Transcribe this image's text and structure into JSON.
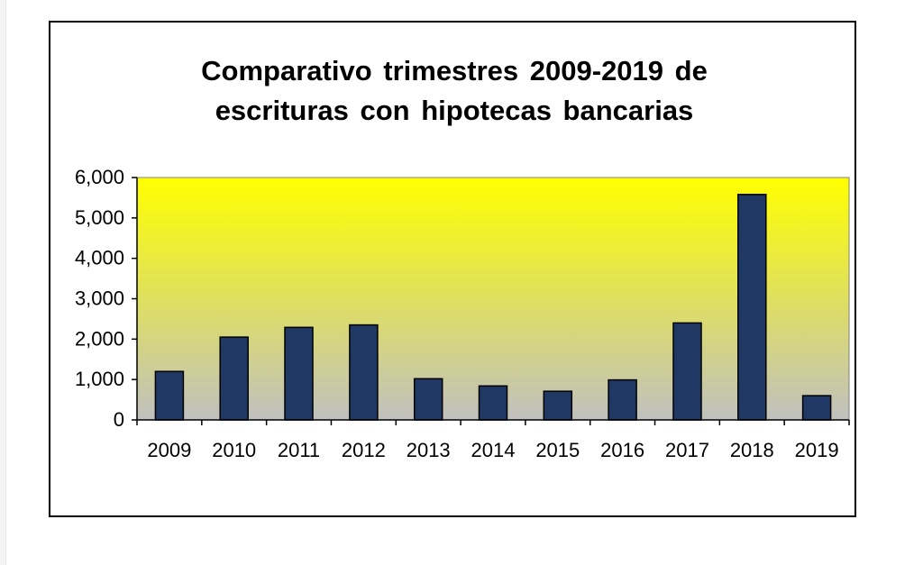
{
  "chart_data": {
    "type": "bar",
    "title_lines": [
      "Comparativo trimestres 2009-2019 de",
      "escrituras con hipotecas bancarias"
    ],
    "categories": [
      "2009",
      "2010",
      "2011",
      "2012",
      "2013",
      "2014",
      "2015",
      "2016",
      "2017",
      "2018",
      "2019"
    ],
    "values": [
      1200,
      2050,
      2290,
      2350,
      1020,
      840,
      710,
      990,
      2400,
      5580,
      600
    ],
    "y_ticks": [
      "0",
      "1,000",
      "2,000",
      "3,000",
      "4,000",
      "5,000",
      "6,000"
    ],
    "ylim": [
      0,
      6000
    ],
    "xlabel": "",
    "ylabel": "",
    "grid": false,
    "legend": "none",
    "colors": {
      "bar": "#1f3864",
      "bar_outline": "#000000",
      "plot_top": "#ffff00",
      "plot_bottom": "#c0c0c0",
      "frame": "#000000"
    }
  }
}
